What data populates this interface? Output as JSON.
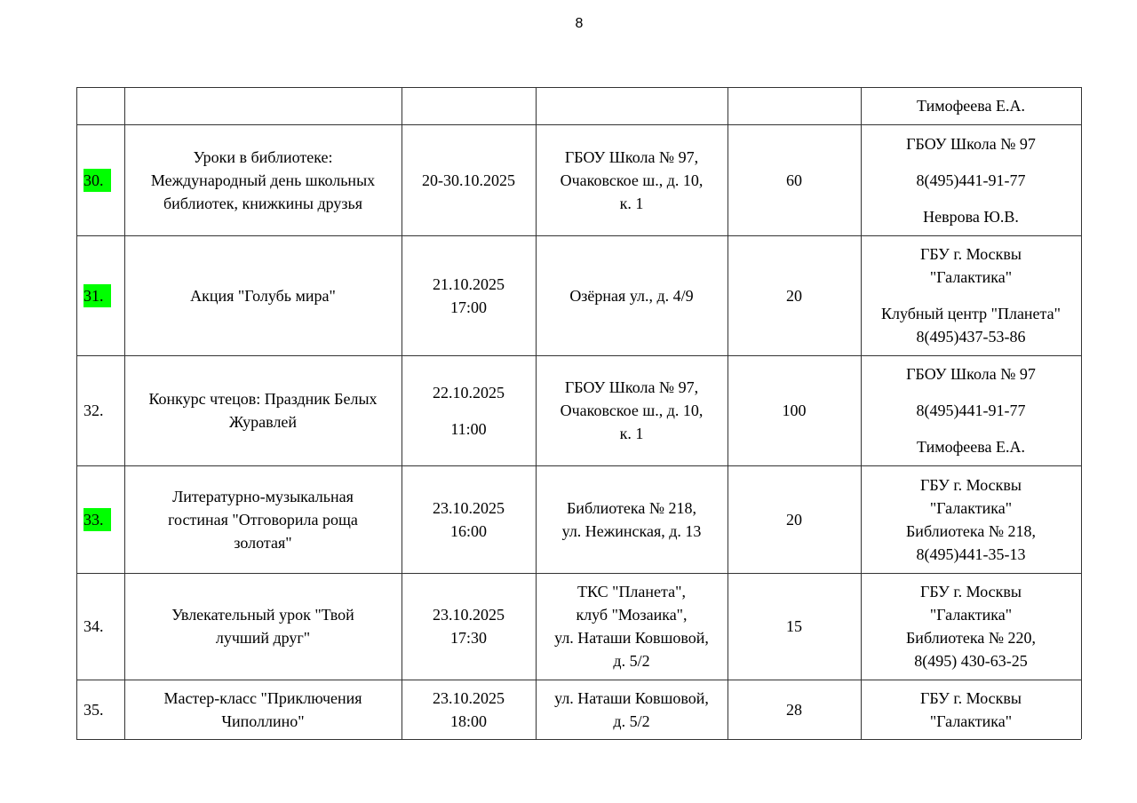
{
  "page_number": "8",
  "highlight_color": "#00ff00",
  "rows": [
    {
      "num": "",
      "highlight": false,
      "event": [],
      "date": [],
      "place": [],
      "participants": [],
      "organizer": [
        [
          "Тимофеева Е.А."
        ]
      ]
    },
    {
      "num": "30.",
      "highlight": true,
      "event": [
        [
          "Уроки в библиотеке:",
          "Международный день школьных",
          "библиотек, книжкины друзья"
        ]
      ],
      "date": [
        [
          "20-30.10.2025"
        ]
      ],
      "place": [
        [
          "ГБОУ Школа № 97,",
          "Очаковское ш., д. 10,",
          "к. 1"
        ]
      ],
      "participants": [
        [
          "60"
        ]
      ],
      "organizer": [
        [
          "ГБОУ Школа № 97"
        ],
        [
          "8(495)441-91-77"
        ],
        [
          "Неврова Ю.В."
        ]
      ]
    },
    {
      "num": "31.",
      "highlight": true,
      "event": [
        [
          "Акция \"Голубь мира\""
        ]
      ],
      "date": [
        [
          "21.10.2025",
          "17:00"
        ]
      ],
      "place": [
        [
          "Озёрная ул., д. 4/9"
        ]
      ],
      "participants": [
        [
          "20"
        ]
      ],
      "organizer": [
        [
          "ГБУ г. Москвы",
          "\"Галактика\""
        ],
        [
          "Клубный центр \"Планета\"",
          "8(495)437-53-86"
        ]
      ]
    },
    {
      "num": "32.",
      "highlight": false,
      "event": [
        [
          "Конкурс чтецов: Праздник Белых",
          "Журавлей"
        ]
      ],
      "date": [
        [
          "22.10.2025"
        ],
        [
          "11:00"
        ]
      ],
      "place": [
        [
          "ГБОУ Школа № 97,",
          "Очаковское ш., д. 10,",
          "к. 1"
        ]
      ],
      "participants": [
        [
          "100"
        ]
      ],
      "organizer": [
        [
          "ГБОУ Школа № 97"
        ],
        [
          "8(495)441-91-77"
        ],
        [
          "Тимофеева Е.А."
        ]
      ]
    },
    {
      "num": "33.",
      "highlight": true,
      "event": [
        [
          "Литературно-музыкальная",
          "гостиная \"Отговорила роща",
          "золотая\""
        ]
      ],
      "date": [
        [
          "23.10.2025",
          "16:00"
        ]
      ],
      "place": [
        [
          "Библиотека № 218,",
          "ул. Нежинская, д. 13"
        ]
      ],
      "participants": [
        [
          "20"
        ]
      ],
      "organizer": [
        [
          "ГБУ г. Москвы",
          "\"Галактика\"",
          "Библиотека № 218,",
          "8(495)441-35-13"
        ]
      ]
    },
    {
      "num": "34.",
      "highlight": false,
      "event": [
        [
          "Увлекательный урок \"Твой",
          "лучший друг\""
        ]
      ],
      "date": [
        [
          "23.10.2025",
          "17:30"
        ]
      ],
      "place": [
        [
          "ТКС \"Планета\",",
          "клуб \"Мозаика\",",
          "ул. Наташи Ковшовой,",
          "д. 5/2"
        ]
      ],
      "participants": [
        [
          "15"
        ]
      ],
      "organizer": [
        [
          "ГБУ г. Москвы",
          "\"Галактика\"",
          "Библиотека № 220,",
          "8(495) 430-63-25"
        ]
      ]
    },
    {
      "num": "35.",
      "highlight": false,
      "event": [
        [
          "Мастер-класс \"Приключения",
          "Чиполлино\""
        ]
      ],
      "date": [
        [
          "23.10.2025",
          "18:00"
        ]
      ],
      "place": [
        [
          "ул. Наташи Ковшовой,",
          "д. 5/2"
        ]
      ],
      "participants": [
        [
          "28"
        ]
      ],
      "organizer": [
        [
          "ГБУ г. Москвы",
          "\"Галактика\""
        ]
      ]
    }
  ]
}
